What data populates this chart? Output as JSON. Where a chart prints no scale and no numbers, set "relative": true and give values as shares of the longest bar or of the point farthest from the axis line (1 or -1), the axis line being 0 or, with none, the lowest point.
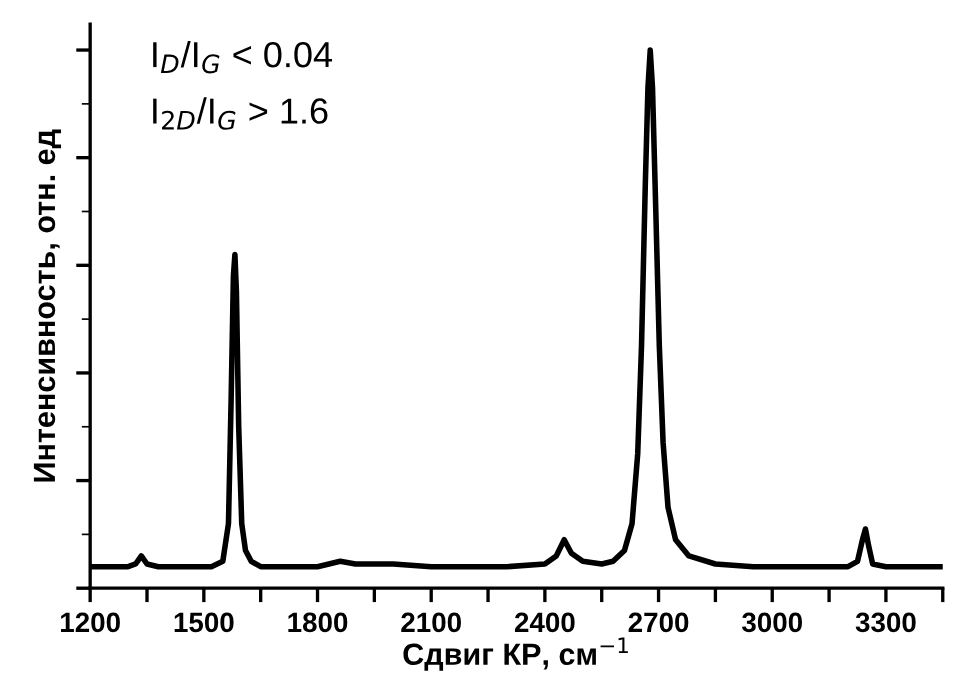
{
  "chart_data": {
    "type": "line",
    "relative": true,
    "xlabel": "Сдвиг КР, см$^{−1}$",
    "ylabel": "Интенсивность, отн. ед",
    "annotations": [
      "I$_{D}$/I$_{G}$ < 0.04",
      "I$_{2D}$/I$_{G}$ > 1.6"
    ],
    "xlim": [
      1200,
      3450
    ],
    "xticks": [
      1200,
      {
        "value": 1350,
        "label": null
      },
      1500,
      {
        "value": 1650,
        "label": null
      },
      1800,
      {
        "value": 1950,
        "label": null
      },
      2100,
      {
        "value": 2250,
        "label": null
      },
      2400,
      {
        "value": 2550,
        "label": null
      },
      2700,
      {
        "value": 2850,
        "label": null
      },
      3000,
      {
        "value": 3150,
        "label": null
      },
      3300,
      {
        "value": 3450,
        "label": null
      }
    ],
    "marker": "none",
    "line_style": "solid",
    "grid": false,
    "legend": false,
    "series": [
      {
        "color": "#000000",
        "x": [
          1200,
          1300,
          1320,
          1335,
          1350,
          1380,
          1450,
          1520,
          1550,
          1565,
          1572,
          1578,
          1582,
          1586,
          1592,
          1600,
          1610,
          1625,
          1650,
          1700,
          1800,
          1860,
          1900,
          2000,
          2100,
          2200,
          2300,
          2400,
          2430,
          2451,
          2470,
          2500,
          2550,
          2580,
          2610,
          2630,
          2645,
          2655,
          2665,
          2672,
          2678,
          2684,
          2692,
          2702,
          2712,
          2725,
          2745,
          2780,
          2850,
          2950,
          3100,
          3200,
          3225,
          3238,
          3246,
          3254,
          3265,
          3300,
          3450
        ],
        "values": [
          0.04,
          0.04,
          0.045,
          0.06,
          0.045,
          0.04,
          0.04,
          0.04,
          0.05,
          0.12,
          0.35,
          0.58,
          0.62,
          0.55,
          0.3,
          0.12,
          0.07,
          0.05,
          0.04,
          0.04,
          0.04,
          0.05,
          0.045,
          0.045,
          0.04,
          0.04,
          0.04,
          0.045,
          0.06,
          0.09,
          0.065,
          0.05,
          0.045,
          0.05,
          0.07,
          0.12,
          0.25,
          0.45,
          0.75,
          0.93,
          1.0,
          0.93,
          0.72,
          0.45,
          0.27,
          0.15,
          0.09,
          0.06,
          0.045,
          0.04,
          0.04,
          0.04,
          0.05,
          0.09,
          0.11,
          0.08,
          0.045,
          0.04,
          0.04
        ]
      }
    ]
  }
}
